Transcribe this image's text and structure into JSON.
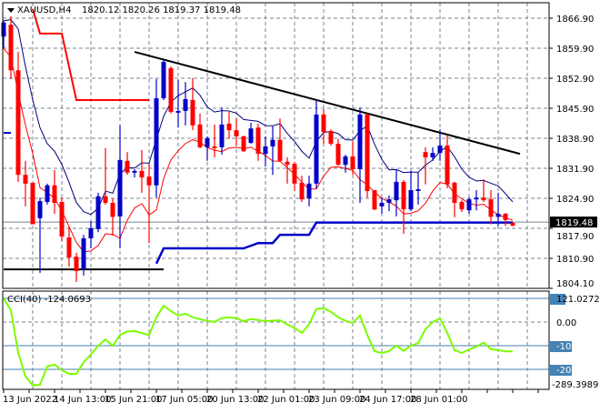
{
  "header": {
    "symbol": "XAUUSD,H4",
    "ohlc": "1820.12 1820.26 1819.37 1819.48"
  },
  "colors": {
    "bull": "#0000c8",
    "bear": "#ff0000",
    "ma_upper": "#000080",
    "ma_lower": "#ff0000",
    "cci": "#7cfc00",
    "level": "#4682b4",
    "price_box": "#000000"
  },
  "price_axis": [
    "1866.90",
    "1859.90",
    "1852.90",
    "1845.90",
    "1838.90",
    "1831.90",
    "1824.90",
    "1817.90",
    "1810.90",
    "1804.10"
  ],
  "current_price": "1819.48",
  "time_axis": [
    "13 Jun 2022",
    "14 Jun 13:00",
    "15 Jun 21:00",
    "17 Jun 05:00",
    "20 Jun 13:00",
    "22 Jun 01:00",
    "23 Jun 09:00",
    "24 Jun 17:00",
    "28 Jun 01:00"
  ],
  "cci": {
    "label": "CCI(40) -124.0693",
    "axis_max": "121.0272",
    "axis_zero": "0.00",
    "level_m100": "-100",
    "level_m200": "-200",
    "axis_min": "-289.3989"
  },
  "chart_data": {
    "type": "candlestick",
    "symbol": "XAUUSD",
    "timeframe": "H4",
    "ylim": [
      1804.1,
      1866.9
    ],
    "candles_ohlc": [
      [
        1862.7,
        1866.3,
        1860.0,
        1865.9
      ],
      [
        1865.4,
        1867.3,
        1853.0,
        1855.0
      ],
      [
        1855.0,
        1859.2,
        1829.5,
        1831.1
      ],
      [
        1831.1,
        1834.3,
        1823.9,
        1829.1
      ],
      [
        1829.3,
        1829.3,
        1819.8,
        1819.8
      ],
      [
        1821.2,
        1825.9,
        1808.7,
        1825.1
      ],
      [
        1824.9,
        1829.1,
        1824.3,
        1828.7
      ],
      [
        1828.7,
        1832.2,
        1822.2,
        1824.7
      ],
      [
        1824.9,
        1825.9,
        1816.0,
        1817.0
      ],
      [
        1816.8,
        1819.1,
        1810.1,
        1812.2
      ],
      [
        1812.4,
        1813.3,
        1806.6,
        1809.1
      ],
      [
        1809.5,
        1817.4,
        1808.1,
        1816.6
      ],
      [
        1816.6,
        1820.5,
        1814.3,
        1818.9
      ],
      [
        1818.7,
        1827.0,
        1818.0,
        1826.2
      ],
      [
        1826.2,
        1837.2,
        1824.3,
        1824.7
      ],
      [
        1824.7,
        1825.7,
        1817.2,
        1821.5
      ],
      [
        1821.6,
        1842.4,
        1814.3,
        1834.5
      ],
      [
        1834.3,
        1836.3,
        1831.1,
        1831.6
      ],
      [
        1831.6,
        1832.4,
        1830.5,
        1832.0
      ],
      [
        1832.0,
        1836.8,
        1827.0,
        1830.5
      ],
      [
        1830.7,
        1833.6,
        1815.5,
        1828.7
      ],
      [
        1828.7,
        1853.0,
        1825.9,
        1848.6
      ],
      [
        1848.6,
        1857.5,
        1848.2,
        1856.9
      ],
      [
        1855.5,
        1855.9,
        1845.1,
        1845.5
      ],
      [
        1845.3,
        1852.8,
        1841.9,
        1845.7
      ],
      [
        1845.7,
        1852.3,
        1842.4,
        1848.4
      ],
      [
        1848.2,
        1853.2,
        1841.3,
        1842.4
      ],
      [
        1842.6,
        1845.1,
        1837.2,
        1837.4
      ],
      [
        1837.4,
        1839.9,
        1834.3,
        1839.5
      ],
      [
        1837.6,
        1842.6,
        1835.1,
        1837.2
      ],
      [
        1837.4,
        1846.5,
        1835.7,
        1842.6
      ],
      [
        1842.8,
        1845.5,
        1839.3,
        1841.3
      ],
      [
        1841.3,
        1844.0,
        1837.8,
        1839.9
      ],
      [
        1839.9,
        1840.1,
        1836.3,
        1836.5
      ],
      [
        1838.4,
        1843.0,
        1838.2,
        1841.7
      ],
      [
        1841.9,
        1842.8,
        1834.3,
        1835.9
      ],
      [
        1835.9,
        1839.9,
        1833.0,
        1837.6
      ],
      [
        1837.6,
        1842.2,
        1831.1,
        1839.1
      ],
      [
        1839.1,
        1844.0,
        1834.1,
        1834.3
      ],
      [
        1834.1,
        1835.1,
        1829.1,
        1833.4
      ],
      [
        1833.6,
        1834.1,
        1827.4,
        1829.1
      ],
      [
        1829.3,
        1830.9,
        1824.9,
        1825.5
      ],
      [
        1825.7,
        1830.9,
        1823.9,
        1829.1
      ],
      [
        1829.1,
        1848.2,
        1828.0,
        1844.9
      ],
      [
        1844.9,
        1846.1,
        1838.2,
        1840.9
      ],
      [
        1841.1,
        1841.5,
        1837.8,
        1838.2
      ],
      [
        1838.2,
        1839.3,
        1833.2,
        1833.4
      ],
      [
        1833.4,
        1835.7,
        1831.6,
        1835.3
      ],
      [
        1835.3,
        1838.8,
        1831.1,
        1832.4
      ],
      [
        1832.4,
        1846.5,
        1824.7,
        1844.9
      ],
      [
        1844.9,
        1845.1,
        1825.9,
        1827.4
      ],
      [
        1827.6,
        1827.6,
        1823.0,
        1823.2
      ],
      [
        1823.9,
        1825.9,
        1822.2,
        1824.7
      ],
      [
        1824.7,
        1826.4,
        1822.8,
        1825.5
      ],
      [
        1825.3,
        1832.4,
        1821.6,
        1829.5
      ],
      [
        1829.5,
        1829.9,
        1817.6,
        1823.2
      ],
      [
        1823.2,
        1832.0,
        1822.8,
        1827.6
      ],
      [
        1827.4,
        1831.6,
        1824.3,
        1827.8
      ],
      [
        1836.3,
        1837.4,
        1828.9,
        1835.1
      ],
      [
        1835.1,
        1837.4,
        1834.3,
        1836.1
      ],
      [
        1836.1,
        1841.5,
        1834.3,
        1837.8
      ],
      [
        1837.8,
        1840.2,
        1828.0,
        1828.9
      ],
      [
        1829.3,
        1829.5,
        1821.4,
        1824.7
      ],
      [
        1824.9,
        1825.3,
        1822.6,
        1823.2
      ],
      [
        1823.0,
        1825.9,
        1822.2,
        1825.5
      ],
      [
        1825.5,
        1827.6,
        1823.0,
        1825.9
      ],
      [
        1825.9,
        1830.1,
        1824.9,
        1825.3
      ],
      [
        1825.5,
        1827.6,
        1819.8,
        1821.5
      ],
      [
        1821.5,
        1827.0,
        1819.4,
        1822.2
      ],
      [
        1822.2,
        1822.4,
        1819.4,
        1820.8
      ],
      [
        1820.12,
        1820.26,
        1819.37,
        1819.48
      ]
    ],
    "upper_step_line": [
      [
        4,
        1869.0
      ],
      [
        5,
        1863.4
      ],
      [
        8,
        1863.4
      ],
      [
        10,
        1848.2
      ],
      [
        20,
        1848.2
      ]
    ],
    "lower_step_line": [
      [
        21,
        1810.8
      ],
      [
        22,
        1814.3
      ],
      [
        33,
        1814.3
      ],
      [
        35,
        1815.5
      ],
      [
        37,
        1815.5
      ],
      [
        38,
        1817.4
      ],
      [
        42,
        1817.4
      ],
      [
        43,
        1820.2
      ],
      [
        70,
        1820.2
      ]
    ],
    "left_stub_line": [
      [
        0,
        1840.7
      ],
      [
        1,
        1840.7
      ]
    ],
    "support_line": [
      [
        0,
        1809.5
      ],
      [
        22,
        1809.5
      ]
    ],
    "trendline": [
      [
        18,
        1859.2
      ],
      [
        71,
        1835.9
      ]
    ],
    "cci_ylim": [
      -289.3989,
      121.0272
    ],
    "cci_levels": [
      100,
      0,
      -100,
      -200
    ],
    "cci_values": [
      100,
      50,
      -130,
      -230,
      -268,
      -265,
      -188,
      -180,
      -204,
      -219,
      -219,
      -170,
      -138,
      -100,
      -74,
      -100,
      -55,
      -40,
      -38,
      -47,
      -55,
      20,
      69,
      46,
      28,
      35,
      20,
      12,
      5,
      0,
      17,
      19,
      17,
      3,
      13,
      8,
      4,
      6,
      7,
      -10,
      -25,
      -46,
      -10,
      55,
      59,
      43,
      20,
      5,
      -4,
      27,
      -54,
      -123,
      -131,
      -123,
      -100,
      -122,
      -100,
      -89,
      -30,
      0,
      15,
      -46,
      -118,
      -131,
      -116,
      -104,
      -87,
      -115,
      -119,
      -124,
      -124.0693
    ]
  }
}
